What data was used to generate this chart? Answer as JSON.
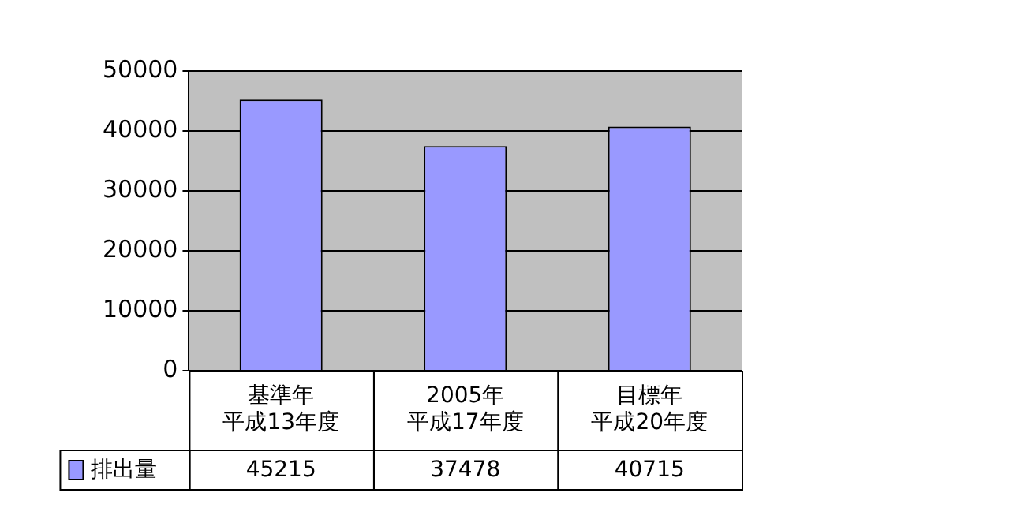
{
  "chart_data": {
    "type": "bar",
    "categories": [
      "基準年平成13年度",
      "2005年平成17年度",
      "目標年平成20年度"
    ],
    "series": [
      {
        "name": "排出量",
        "color": "#9999ff",
        "values": [
          45215,
          37478,
          40715
        ]
      }
    ],
    "ylim": [
      0,
      50000
    ],
    "yticks": [
      0,
      10000,
      20000,
      30000,
      40000,
      50000
    ],
    "grid": "y",
    "legend": "bottom left",
    "data_labels": true
  }
}
